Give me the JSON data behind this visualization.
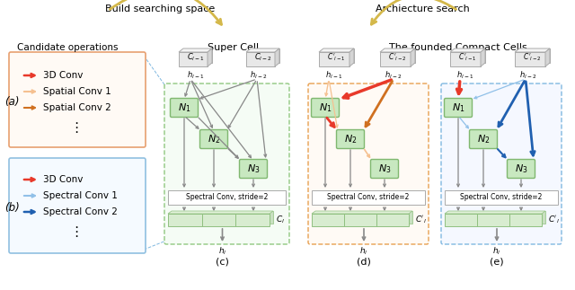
{
  "title_top_left": "Build searching space",
  "title_top_right": "Archiecture search",
  "label_a": "(a)",
  "label_b": "(b)",
  "label_c": "(c)",
  "label_d": "(d)",
  "label_e": "(e)",
  "candidate_ops_title": "Candidate operations",
  "super_cell_title": "Super Cell",
  "compact_cells_title": "The founded Compact Cells",
  "box_a_items": [
    "3D Conv",
    "Spatial Conv 1",
    "Spatial Conv 2"
  ],
  "box_b_items": [
    "3D Conv",
    "Spectral Conv 1",
    "Spectral Conv 2"
  ],
  "color_red": "#e8392a",
  "color_orange_light": "#f5c090",
  "color_orange_dark": "#d07020",
  "color_blue_light": "#90c0e8",
  "color_blue_dark": "#2060b0",
  "color_gray": "#888888",
  "color_green_node_fill": "#c8e8c0",
  "color_green_node_edge": "#80b870",
  "color_green_bar_fill": "#d8ecd0",
  "color_green_bar_edge": "#90c080",
  "color_box_a_border": "#e8a070",
  "color_box_a_fill": "#fffaf5",
  "color_box_b_border": "#90c0e0",
  "color_box_b_fill": "#f5faff",
  "color_dashed_green": "#90c880",
  "color_dashed_orange": "#e8a050",
  "color_dashed_blue": "#80b8e0",
  "color_gray_cube_fill": "#e8e8e8",
  "color_gray_cube_edge": "#aaaaaa",
  "spectral_conv_text": "Spectral Conv, stride=2",
  "bg_color": "#ffffff"
}
